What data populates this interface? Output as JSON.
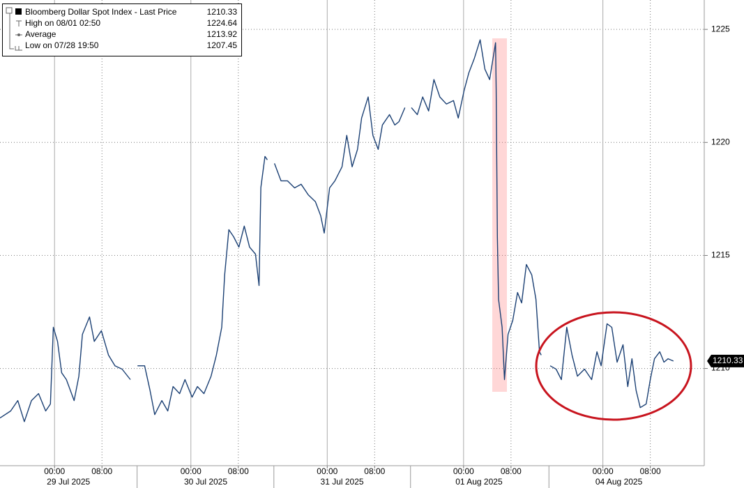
{
  "chart_data": {
    "type": "line",
    "title": "Bloomberg Dollar Spot Index - Last Price",
    "last_value": 1210.33,
    "legend_stats": [
      {
        "label": "High on 08/01 02:50",
        "value": 1224.64
      },
      {
        "label": "Average",
        "value": 1213.92
      },
      {
        "label": "Low on 07/28 19:50",
        "value": 1207.45
      }
    ],
    "x": [
      -9.2,
      -7.4,
      -6.2,
      -5.1,
      -3.9,
      -2.7,
      -1.5,
      -0.7,
      -0.2,
      0.5,
      1.2,
      2.0,
      3.3,
      4.1,
      4.7,
      5.9,
      6.7,
      7.9,
      9.1,
      10.2,
      11.4,
      12.8,
      13.8,
      14.0,
      15.2,
      16.1,
      16.9,
      18.1,
      19.1,
      20.0,
      21.1,
      22.0,
      23.2,
      24.1,
      25.2,
      26.4,
      27.3,
      28.2,
      28.7,
      29.4,
      30.2,
      31.1,
      32.0,
      32.9,
      33.9,
      34.5,
      34.8,
      35.5,
      35.9,
      36.5,
      37.1,
      38.2,
      39.3,
      40.5,
      41.6,
      42.8,
      44.0,
      44.9,
      45.5,
      46.4,
      47.3,
      48.5,
      49.3,
      50.2,
      51.1,
      51.8,
      52.9,
      53.7,
      54.6,
      55.3,
      56.5,
      57.4,
      58.1,
      59.1,
      59.7,
      60.2,
      61.2,
      62.1,
      63.1,
      64.0,
      65.0,
      66.1,
      67.3,
      68.1,
      69.1,
      69.9,
      70.8,
      71.8,
      72.6,
      73.4,
      74.4,
      74.5,
      74.7,
      74.9,
      75.5,
      75.9,
      76.5,
      77.3,
      78.1,
      78.8,
      79.6,
      80.5,
      81.2,
      81.8,
      82.1,
      83.0,
      83.6,
      84.6,
      85.5,
      86.4,
      87.3,
      88.2,
      89.4,
      90.6,
      91.5,
      92.2,
      93.2,
      94.0,
      94.9,
      95.9,
      96.7,
      97.4,
      98.1,
      98.8,
      99.8,
      100.5,
      101.2,
      102.1,
      102.8,
      103.5,
      104.4
    ],
    "series": [
      {
        "name": "Bloomberg Dollar Spot Index - Last Price",
        "color": "#1a3f73",
        "values": [
          1207.81,
          1208.12,
          1208.58,
          1207.65,
          1208.58,
          1208.89,
          1208.12,
          1208.43,
          1211.82,
          1211.2,
          1209.81,
          1209.51,
          1208.58,
          1209.66,
          1211.51,
          1212.28,
          1211.2,
          1211.67,
          1210.59,
          1210.12,
          1209.97,
          1209.51,
          null,
          1210.12,
          1210.12,
          1209.04,
          1207.96,
          1208.58,
          1208.12,
          1209.2,
          1208.89,
          1209.51,
          1208.73,
          1209.2,
          1208.89,
          1209.66,
          1210.59,
          1211.82,
          1214.14,
          1216.14,
          1215.83,
          1215.37,
          1216.3,
          1215.37,
          1215.06,
          1213.67,
          1218.0,
          1219.38,
          1219.23,
          null,
          1219.07,
          1218.3,
          1218.3,
          1217.99,
          1218.15,
          1217.68,
          1217.38,
          1216.76,
          1215.99,
          1217.99,
          1218.3,
          1218.92,
          1220.31,
          1218.92,
          1219.69,
          1221.08,
          1222.01,
          1220.31,
          1219.69,
          1220.77,
          1221.23,
          1220.77,
          1220.92,
          1221.54,
          null,
          1221.54,
          1221.23,
          1222.01,
          1221.39,
          1222.78,
          1222.01,
          1221.7,
          1221.85,
          1221.08,
          1222.31,
          1223.09,
          1223.7,
          1224.54,
          1223.24,
          1222.78,
          1224.41,
          1222.31,
          1215.83,
          1213.06,
          1211.82,
          1209.51,
          1211.51,
          1212.13,
          1213.36,
          1212.9,
          1214.6,
          1214.14,
          1213.06,
          1210.74,
          1210.59,
          null,
          1210.12,
          1209.97,
          1209.51,
          1211.82,
          1210.59,
          1209.66,
          1209.97,
          1209.51,
          1210.74,
          1210.12,
          1211.98,
          1211.82,
          1210.28,
          1211.05,
          1209.2,
          1210.43,
          1209.04,
          1208.27,
          1208.43,
          1209.51,
          1210.43,
          1210.74,
          1210.28,
          1210.43,
          1210.33
        ]
      }
    ],
    "xlim": [
      -9.2,
      109.6
    ],
    "xticks": [
      {
        "value": 0,
        "label": "00:00"
      },
      {
        "value": 8,
        "label": "08:00"
      },
      {
        "value": 23,
        "label": "00:00"
      },
      {
        "value": 31,
        "label": "08:00"
      },
      {
        "value": 46,
        "label": "00:00"
      },
      {
        "value": 54,
        "label": "08:00"
      },
      {
        "value": 69,
        "label": "00:00"
      },
      {
        "value": 77,
        "label": "08:00"
      },
      {
        "value": 92.5,
        "label": "00:00"
      },
      {
        "value": 100.5,
        "label": "08:00"
      }
    ],
    "date_labels": [
      {
        "value": 2.35,
        "label": "29 Jul 2025"
      },
      {
        "value": 25.5,
        "label": "30 Jul 2025"
      },
      {
        "value": 48.5,
        "label": "31 Jul 2025"
      },
      {
        "value": 71.6,
        "label": "01 Aug 2025"
      },
      {
        "value": 95.2,
        "label": "04 Aug 2025"
      }
    ],
    "ylim": [
      1205.7,
      1226.3
    ],
    "yticks": [
      1210,
      1215,
      1220,
      1225
    ],
    "grid": true
  }
}
